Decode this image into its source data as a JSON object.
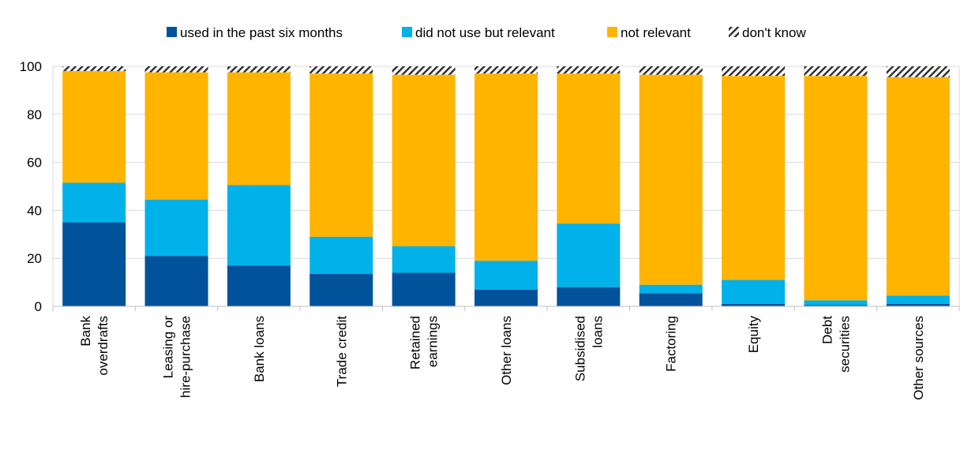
{
  "chart_data": {
    "type": "bar",
    "stacked": true,
    "categories": [
      [
        "Bank",
        "overdrafts"
      ],
      [
        "Leasing or",
        "hire-purchase"
      ],
      [
        "Bank loans"
      ],
      [
        "Trade credit"
      ],
      [
        "Retained",
        "earnings"
      ],
      [
        "Other loans"
      ],
      [
        "Subsidised",
        "loans"
      ],
      [
        "Factoring"
      ],
      [
        "Equity"
      ],
      [
        "Debt",
        "securities"
      ],
      [
        "Other sources"
      ]
    ],
    "series": [
      {
        "name": "used in the past six months",
        "color": "#00529b",
        "pattern": false,
        "values": [
          35,
          21,
          17,
          13.5,
          14,
          7,
          8,
          5.5,
          1,
          0.5,
          1
        ]
      },
      {
        "name": "did not use but relevant",
        "color": "#00b1ea",
        "pattern": false,
        "values": [
          16.5,
          23.5,
          33.5,
          15.5,
          11,
          12,
          26.5,
          3.5,
          10,
          2,
          3.5
        ]
      },
      {
        "name": "not relevant",
        "color": "#ffb400",
        "pattern": false,
        "values": [
          46.5,
          53,
          47,
          68,
          71.5,
          78,
          62.5,
          87.5,
          85,
          93.5,
          91
        ]
      },
      {
        "name": "don't know",
        "color": "#333333",
        "pattern": true,
        "values": [
          2,
          2.5,
          2.5,
          3,
          3.5,
          3,
          3,
          3.5,
          4,
          4,
          4.5
        ]
      }
    ],
    "ylim": [
      0,
      100
    ],
    "yticks": [
      0,
      20,
      40,
      60,
      80,
      100
    ],
    "grid": true,
    "legend": "top",
    "title": "",
    "xlabel": "",
    "ylabel": ""
  }
}
